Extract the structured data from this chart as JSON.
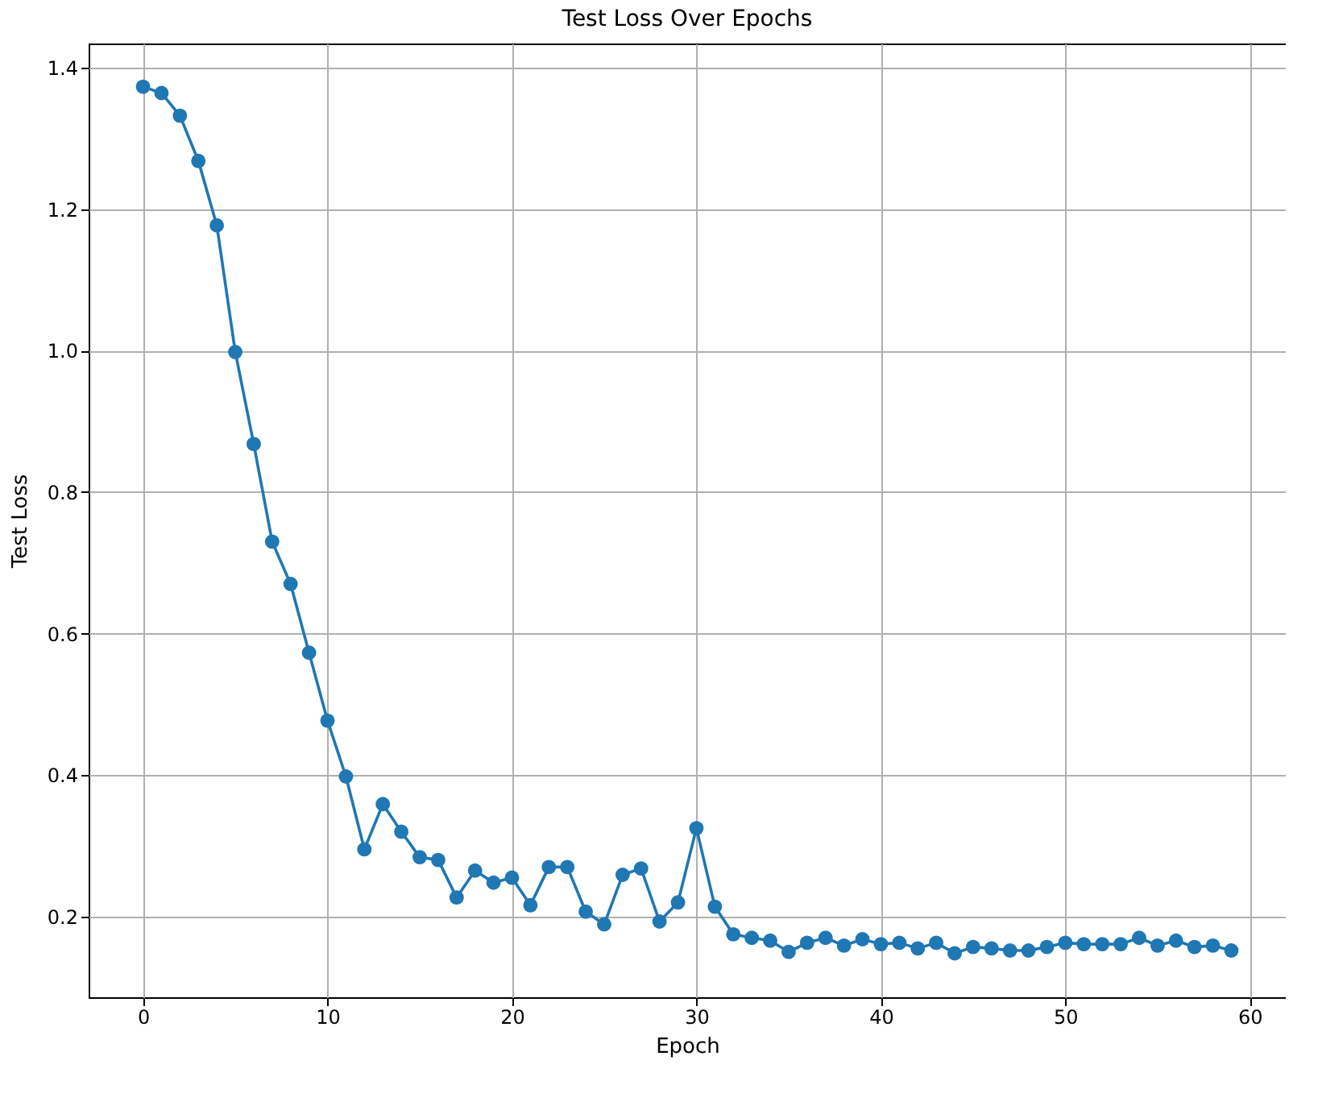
{
  "chart_data": {
    "type": "line",
    "title": "Test Loss Over Epochs",
    "xlabel": "Epoch",
    "ylabel": "Test Loss",
    "x": [
      0,
      1,
      2,
      3,
      4,
      5,
      6,
      7,
      8,
      9,
      10,
      11,
      12,
      13,
      14,
      15,
      16,
      17,
      18,
      19,
      20,
      21,
      22,
      23,
      24,
      25,
      26,
      27,
      28,
      29,
      30,
      31,
      32,
      33,
      34,
      35,
      36,
      37,
      38,
      39,
      40,
      41,
      42,
      43,
      44,
      45,
      46,
      47,
      48,
      49,
      50,
      51,
      52,
      53,
      54,
      55,
      56,
      57,
      58,
      59
    ],
    "series": [
      {
        "color": "#1f77b4",
        "values": [
          1.373,
          1.364,
          1.332,
          1.268,
          1.177,
          0.998,
          0.868,
          0.73,
          0.67,
          0.573,
          0.477,
          0.398,
          0.295,
          0.359,
          0.32,
          0.284,
          0.28,
          0.227,
          0.265,
          0.248,
          0.255,
          0.216,
          0.27,
          0.27,
          0.207,
          0.189,
          0.259,
          0.268,
          0.193,
          0.22,
          0.325,
          0.214,
          0.175,
          0.17,
          0.166,
          0.15,
          0.163,
          0.17,
          0.159,
          0.168,
          0.161,
          0.163,
          0.155,
          0.163,
          0.148,
          0.157,
          0.155,
          0.152,
          0.152,
          0.157,
          0.163,
          0.161,
          0.161,
          0.161,
          0.17,
          0.159,
          0.166,
          0.157,
          0.159,
          0.152
        ]
      }
    ],
    "xlim": [
      -2.95,
      61.95
    ],
    "ylim": [
      0.086,
      1.434
    ],
    "xticks": [
      0,
      10,
      20,
      30,
      40,
      50,
      60
    ],
    "yticks": [
      0.2,
      0.4,
      0.6,
      0.8,
      {
        "value": 1,
        "label": "1.0"
      },
      1.2,
      1.4
    ],
    "grid": true,
    "marker": "circle",
    "line_style": "solid"
  }
}
